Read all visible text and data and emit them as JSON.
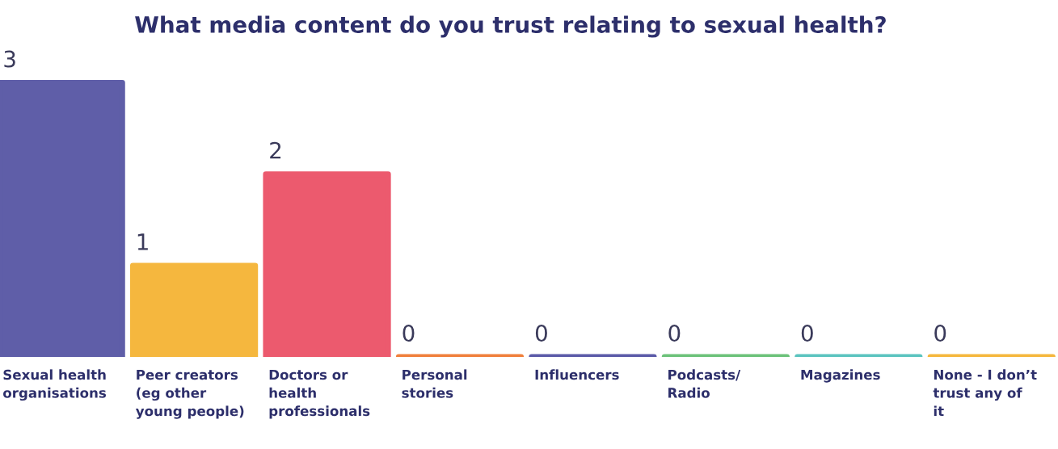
{
  "chart_data": {
    "type": "bar",
    "title": "What media content do you trust relating to sexual health?",
    "categories": [
      "Sexual health organisations",
      "Peer creators (eg other young people)",
      "Doctors or health professionals",
      "Personal stories",
      "Influencers",
      "Podcasts/ Radio",
      "Magazines",
      "None - I don’t trust any of it"
    ],
    "values": [
      3,
      1,
      2,
      0,
      0,
      0,
      0,
      0
    ],
    "colors": [
      "#5f5ea8",
      "#f5b73e",
      "#ec5a6e",
      "#f0803c",
      "#5b5aa8",
      "#6cc27a",
      "#5bc4bf",
      "#f5b73e"
    ],
    "data_labels": true
  }
}
